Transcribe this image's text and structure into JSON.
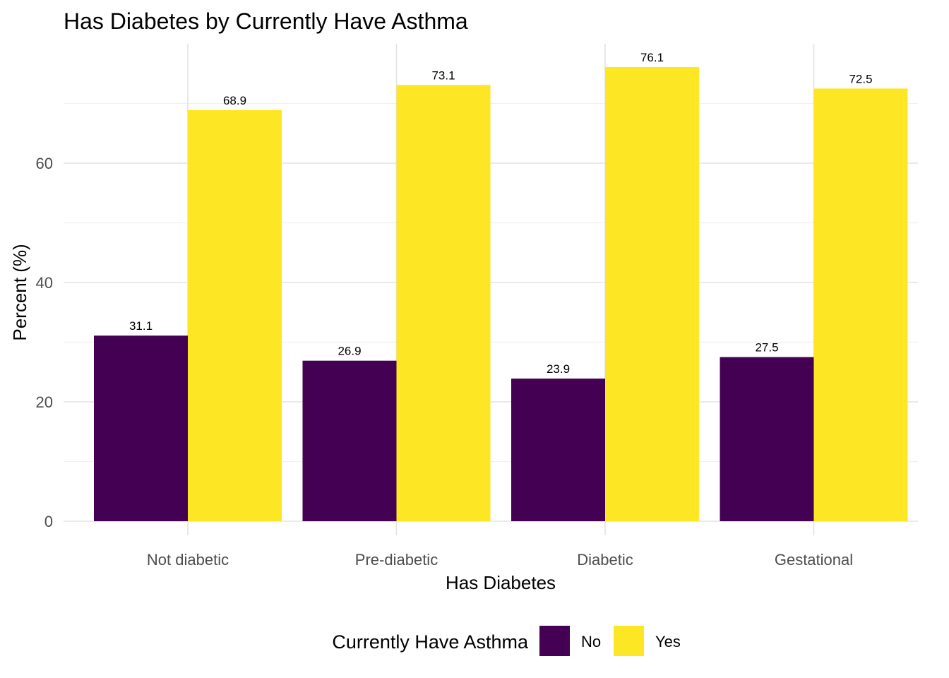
{
  "chart_data": {
    "type": "bar",
    "title": "Has Diabetes by Currently Have Asthma",
    "xlabel": "Has Diabetes",
    "ylabel": "Percent (%)",
    "categories": [
      "Not diabetic",
      "Pre-diabetic",
      "Diabetic",
      "Gestational"
    ],
    "series": [
      {
        "name": "No",
        "color": "#440154",
        "values": [
          31.1,
          26.9,
          23.9,
          27.5
        ]
      },
      {
        "name": "Yes",
        "color": "#FDE725",
        "values": [
          68.9,
          73.1,
          76.1,
          72.5
        ]
      }
    ],
    "data_labels": [
      [
        "31.1",
        "26.9",
        "23.9",
        "27.5"
      ],
      [
        "68.9",
        "73.1",
        "76.1",
        "72.5"
      ]
    ],
    "y_ticks": [
      0,
      20,
      40,
      60
    ],
    "y_tick_labels": [
      "0",
      "20",
      "40",
      "60"
    ],
    "ylim": [
      0,
      80
    ],
    "grid": true,
    "legend": {
      "title": "Currently Have Asthma",
      "position": "bottom"
    }
  }
}
